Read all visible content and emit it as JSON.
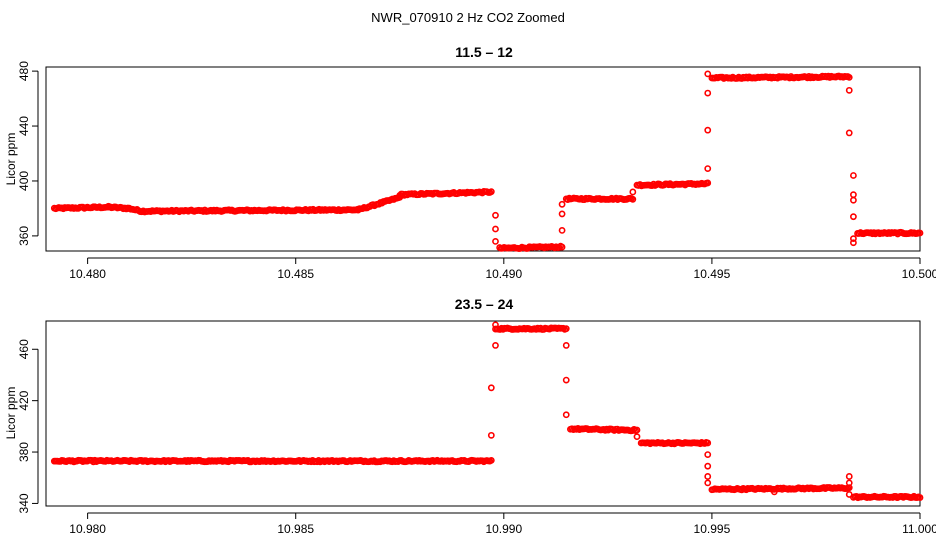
{
  "title": "NWR_070910  2 Hz CO2 Zoomed",
  "colors": {
    "points": "#ff0000",
    "axes": "#000000",
    "background": "#ffffff"
  },
  "chart_data": [
    {
      "type": "scatter",
      "title": "11.5 – 12",
      "xlabel": "",
      "ylabel": "Licor ppm",
      "xlim": [
        10.479,
        10.5
      ],
      "ylim": [
        349,
        483
      ],
      "xticks": [
        10.48,
        10.485,
        10.49,
        10.495,
        10.5
      ],
      "xtick_labels": [
        "10.480",
        "10.485",
        "10.490",
        "10.495",
        "10.500"
      ],
      "yticks": [
        360,
        400,
        440,
        480
      ],
      "ytick_labels": [
        "360",
        "400",
        "440",
        "480"
      ],
      "grid": false,
      "marker": "open-circle",
      "segments": [
        {
          "x": [
            10.4792,
            10.4805
          ],
          "y": [
            380,
            381
          ]
        },
        {
          "x": [
            10.4805,
            10.481
          ],
          "y": [
            381,
            380
          ]
        },
        {
          "x": [
            10.481,
            10.4813
          ],
          "y": [
            380,
            378
          ]
        },
        {
          "x": [
            10.4813,
            10.4865
          ],
          "y": [
            378,
            379
          ]
        },
        {
          "x": [
            10.4865,
            10.4875
          ],
          "y": [
            379,
            388
          ]
        },
        {
          "x": [
            10.4875,
            10.4897
          ],
          "y": [
            390,
            392
          ]
        },
        {
          "x": [
            10.4899,
            10.4914
          ],
          "y": [
            351,
            352
          ]
        },
        {
          "x": [
            10.4915,
            10.4931
          ],
          "y": [
            387,
            387
          ]
        },
        {
          "x": [
            10.4932,
            10.4949
          ],
          "y": [
            397,
            398
          ]
        },
        {
          "x": [
            10.495,
            10.4983
          ],
          "y": [
            475,
            476
          ]
        },
        {
          "x": [
            10.4985,
            10.5
          ],
          "y": [
            362,
            362
          ]
        }
      ],
      "points": [
        [
          10.4898,
          375
        ],
        [
          10.4898,
          365
        ],
        [
          10.4898,
          356
        ],
        [
          10.4914,
          364
        ],
        [
          10.4914,
          376
        ],
        [
          10.4914,
          383
        ],
        [
          10.4931,
          392
        ],
        [
          10.4949,
          409
        ],
        [
          10.4949,
          437
        ],
        [
          10.4949,
          464
        ],
        [
          10.4949,
          478
        ],
        [
          10.4983,
          466
        ],
        [
          10.4983,
          435
        ],
        [
          10.4984,
          404
        ],
        [
          10.4984,
          390
        ],
        [
          10.4984,
          386
        ],
        [
          10.4984,
          374
        ],
        [
          10.4984,
          358
        ],
        [
          10.4984,
          355
        ]
      ]
    },
    {
      "type": "scatter",
      "title": "23.5 – 24",
      "xlabel": "",
      "ylabel": "Licor ppm",
      "xlim": [
        10.979,
        11.0
      ],
      "ylim": [
        338,
        482
      ],
      "xticks": [
        10.98,
        10.985,
        10.99,
        10.995,
        11.0
      ],
      "xtick_labels": [
        "10.980",
        "10.985",
        "10.990",
        "10.995",
        "11.000"
      ],
      "yticks": [
        340,
        380,
        420,
        460
      ],
      "ytick_labels": [
        "340",
        "380",
        "420",
        "460"
      ],
      "grid": false,
      "marker": "open-circle",
      "segments": [
        {
          "x": [
            10.9792,
            10.9897
          ],
          "y": [
            373,
            373
          ]
        },
        {
          "x": [
            10.9898,
            10.9915
          ],
          "y": [
            476,
            476
          ]
        },
        {
          "x": [
            10.9916,
            10.9932
          ],
          "y": [
            398,
            397
          ]
        },
        {
          "x": [
            10.9933,
            10.9949
          ],
          "y": [
            387,
            387
          ]
        },
        {
          "x": [
            10.995,
            10.9983
          ],
          "y": [
            351,
            352
          ]
        },
        {
          "x": [
            10.9984,
            11.0
          ],
          "y": [
            345,
            345
          ]
        }
      ],
      "points": [
        [
          10.9897,
          393
        ],
        [
          10.9897,
          430
        ],
        [
          10.9898,
          463
        ],
        [
          10.9898,
          479
        ],
        [
          10.9915,
          463
        ],
        [
          10.9915,
          436
        ],
        [
          10.9915,
          409
        ],
        [
          10.9932,
          392
        ],
        [
          10.9949,
          378
        ],
        [
          10.9949,
          369
        ],
        [
          10.9949,
          361
        ],
        [
          10.9949,
          356
        ],
        [
          10.9965,
          349
        ],
        [
          10.9983,
          361
        ],
        [
          10.9983,
          356
        ],
        [
          10.9983,
          347
        ]
      ]
    }
  ]
}
